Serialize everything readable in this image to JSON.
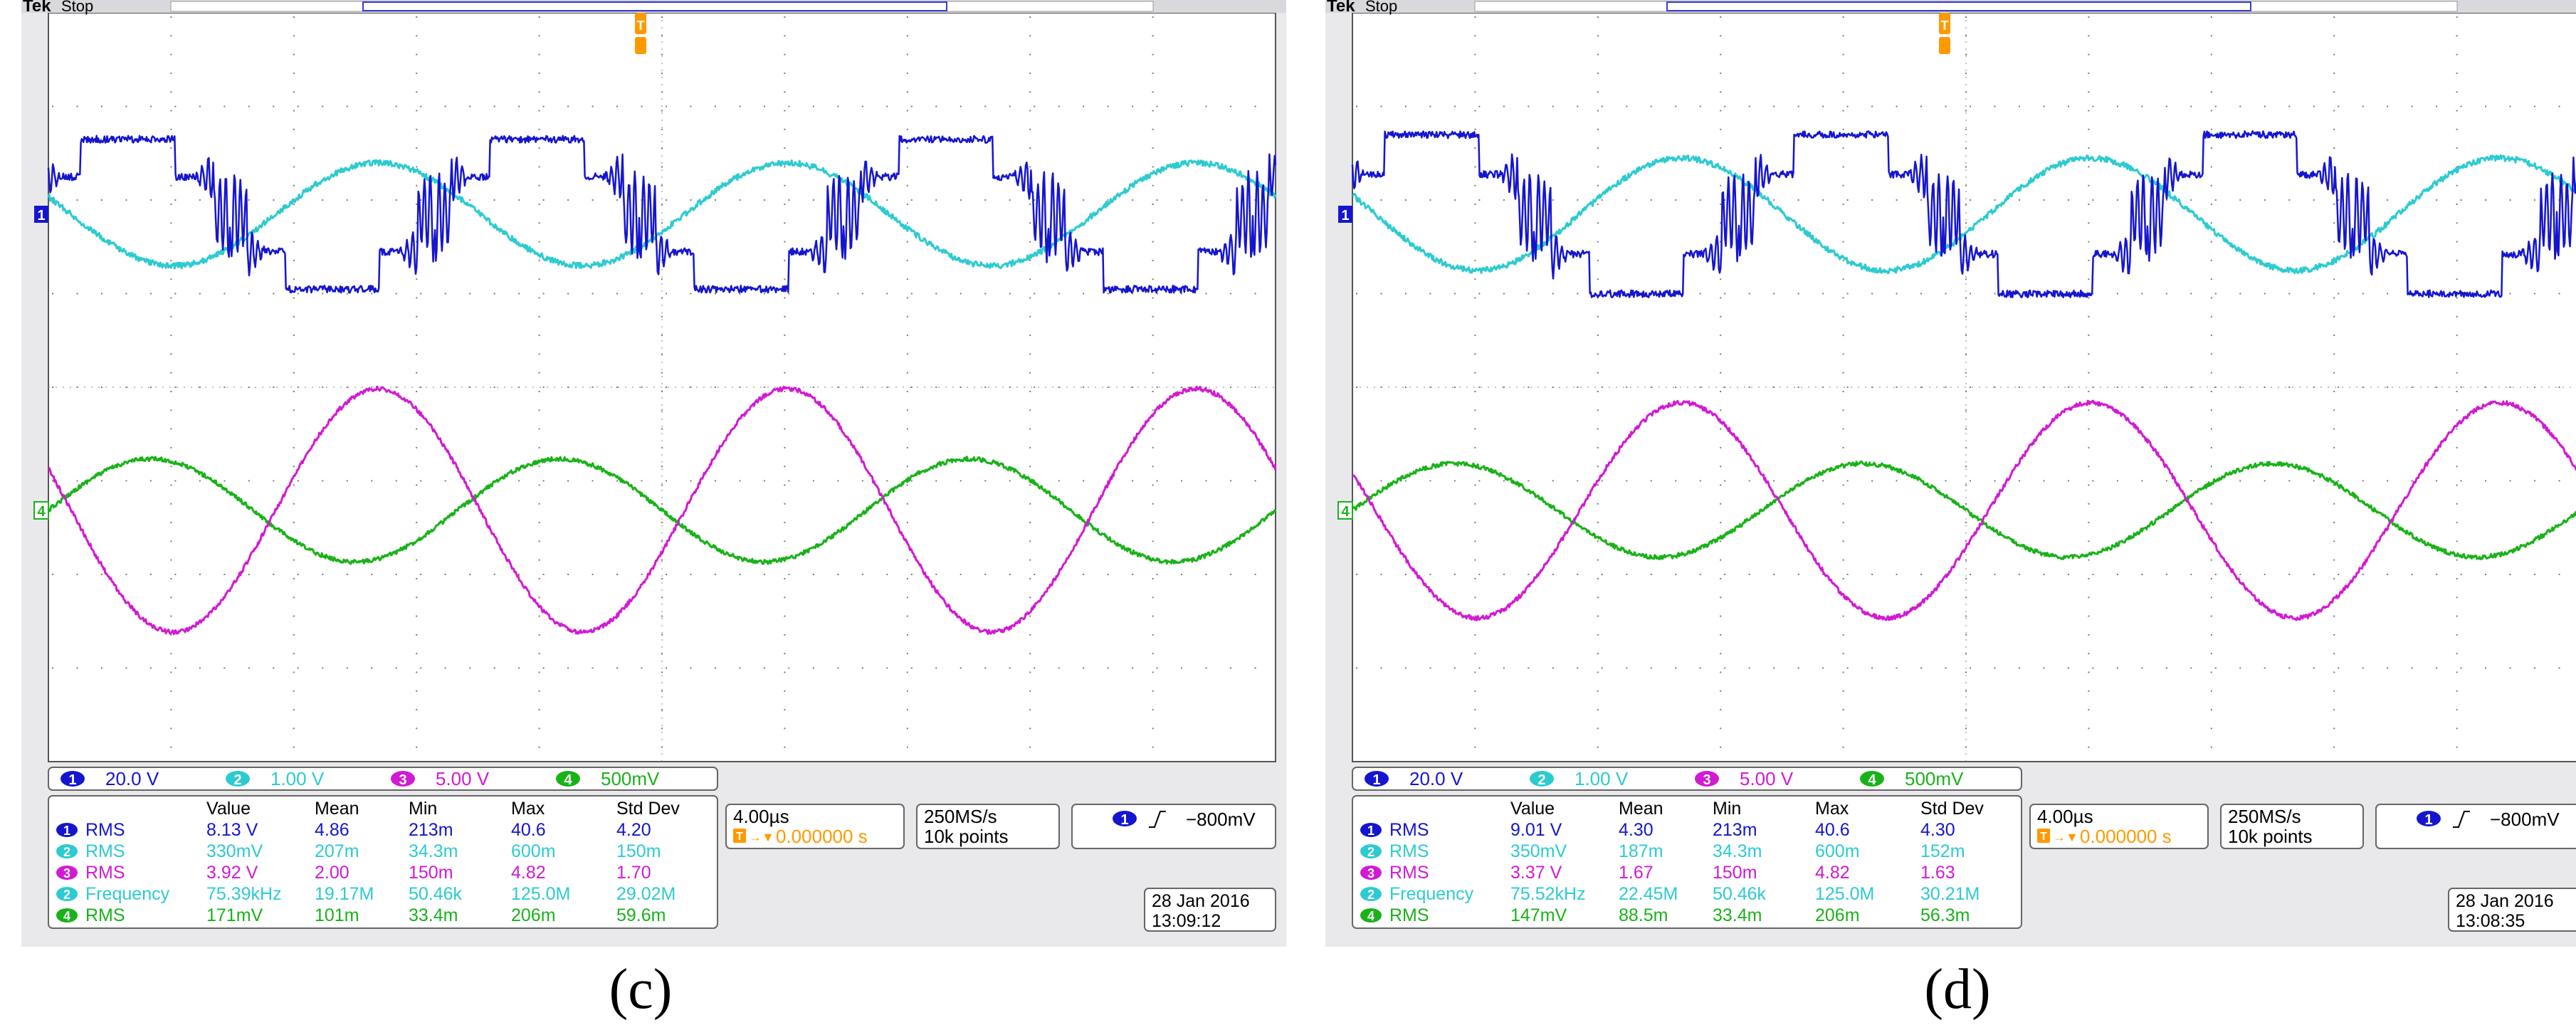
{
  "colors": {
    "ch1": "#1515d0",
    "ch2": "#2ccbd0",
    "ch3": "#d21ad2",
    "ch4": "#19b219",
    "trigger": "#ff9900",
    "grid": "#7a7a7a"
  },
  "panels": [
    {
      "id": "c",
      "caption": "(c)",
      "brand": "Tek",
      "run_state": "Stop",
      "channels": [
        {
          "num": "1",
          "scale": "20.0 V"
        },
        {
          "num": "2",
          "scale": "1.00 V"
        },
        {
          "num": "3",
          "scale": "5.00 V"
        },
        {
          "num": "4",
          "scale": "500mV"
        }
      ],
      "measurements": {
        "headers": [
          "Value",
          "Mean",
          "Min",
          "Max",
          "Std Dev"
        ],
        "rows": [
          {
            "ch": "1",
            "label": "RMS",
            "value": "8.13 V",
            "mean": "4.86",
            "min": "213m",
            "max": "40.6",
            "std": "4.20"
          },
          {
            "ch": "2",
            "label": "RMS",
            "value": "330mV",
            "mean": "207m",
            "min": "34.3m",
            "max": "600m",
            "std": "150m"
          },
          {
            "ch": "3",
            "label": "RMS",
            "value": "3.92 V",
            "mean": "2.00",
            "min": "150m",
            "max": "4.82",
            "std": "1.70"
          },
          {
            "ch": "2",
            "label": "Frequency",
            "value": "75.39kHz",
            "mean": "19.17M",
            "min": "50.46k",
            "max": "125.0M",
            "std": "29.02M"
          },
          {
            "ch": "4",
            "label": "RMS",
            "value": "171mV",
            "mean": "101m",
            "min": "33.4m",
            "max": "206m",
            "std": "59.6m"
          }
        ]
      },
      "timebase": "4.00µs",
      "trigger_pos": "0.000000 s",
      "sample_rate": "250MS/s",
      "record_length": "10k points",
      "trigger_channel": "1",
      "trigger_level": "−800mV",
      "date": "28 Jan  2016",
      "time": "13:09:12"
    },
    {
      "id": "d",
      "caption": "(d)",
      "brand": "Tek",
      "run_state": "Stop",
      "channels": [
        {
          "num": "1",
          "scale": "20.0 V"
        },
        {
          "num": "2",
          "scale": "1.00 V"
        },
        {
          "num": "3",
          "scale": "5.00 V"
        },
        {
          "num": "4",
          "scale": "500mV"
        }
      ],
      "measurements": {
        "headers": [
          "Value",
          "Mean",
          "Min",
          "Max",
          "Std Dev"
        ],
        "rows": [
          {
            "ch": "1",
            "label": "RMS",
            "value": "9.01 V",
            "mean": "4.30",
            "min": "213m",
            "max": "40.6",
            "std": "4.30"
          },
          {
            "ch": "2",
            "label": "RMS",
            "value": "350mV",
            "mean": "187m",
            "min": "34.3m",
            "max": "600m",
            "std": "152m"
          },
          {
            "ch": "3",
            "label": "RMS",
            "value": "3.37 V",
            "mean": "1.67",
            "min": "150m",
            "max": "4.82",
            "std": "1.63"
          },
          {
            "ch": "2",
            "label": "Frequency",
            "value": "75.52kHz",
            "mean": "22.45M",
            "min": "50.46k",
            "max": "125.0M",
            "std": "30.21M"
          },
          {
            "ch": "4",
            "label": "RMS",
            "value": "147mV",
            "mean": "88.5m",
            "min": "33.4m",
            "max": "206m",
            "std": "56.3m"
          }
        ]
      },
      "timebase": "4.00µs",
      "trigger_pos": "0.000000 s",
      "sample_rate": "250MS/s",
      "record_length": "10k points",
      "trigger_channel": "1",
      "trigger_level": "−800mV",
      "date": "28 Jan  2016",
      "time": "13:08:35"
    }
  ],
  "chart_data": [
    {
      "type": "line",
      "panel": "c",
      "x_divisions": 10,
      "y_divisions": 8,
      "series": [
        {
          "channel": "1",
          "waveform": "stepped (multilevel inverter output) with ringing at transitions",
          "amplitude_div": 0.8,
          "cycles": 3
        },
        {
          "channel": "2",
          "waveform": "sine",
          "amplitude_div": 0.55,
          "cycles": 3
        },
        {
          "channel": "3",
          "waveform": "sine",
          "amplitude_div": 1.3,
          "cycles": 3
        },
        {
          "channel": "4",
          "waveform": "sine",
          "amplitude_div": 0.55,
          "cycles": 3
        }
      ]
    },
    {
      "type": "line",
      "panel": "d",
      "x_divisions": 10,
      "y_divisions": 8,
      "series": [
        {
          "channel": "1",
          "waveform": "stepped (multilevel inverter output) with ringing at transitions",
          "amplitude_div": 0.85,
          "cycles": 3
        },
        {
          "channel": "2",
          "waveform": "sine",
          "amplitude_div": 0.6,
          "cycles": 3
        },
        {
          "channel": "3",
          "waveform": "sine",
          "amplitude_div": 1.15,
          "cycles": 3
        },
        {
          "channel": "4",
          "waveform": "sine",
          "amplitude_div": 0.5,
          "cycles": 3
        }
      ]
    }
  ]
}
